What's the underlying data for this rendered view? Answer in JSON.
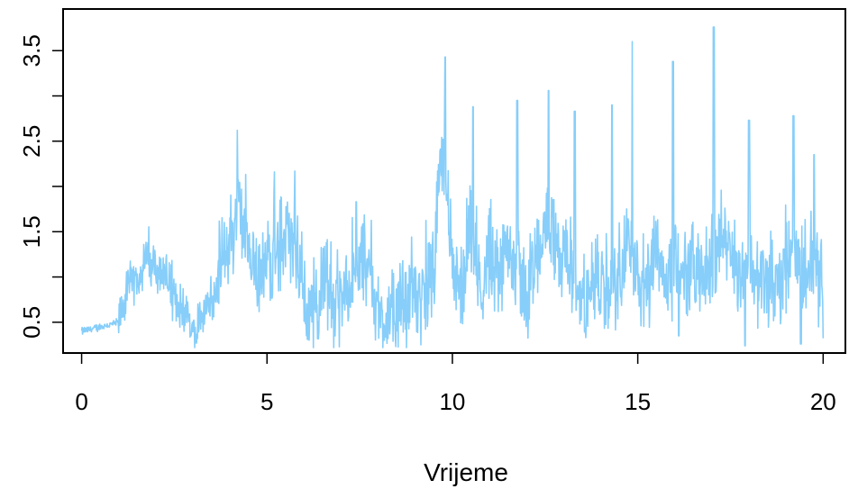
{
  "chart_data": {
    "type": "line",
    "title": "",
    "xlabel": "Vrijeme",
    "ylabel": "",
    "xlim": [
      -0.5,
      20.6
    ],
    "ylim": [
      0.16,
      3.96
    ],
    "x_ticks": [
      0,
      5,
      10,
      15,
      20
    ],
    "y_ticks": [
      0.5,
      1.5,
      2.5,
      3.5
    ],
    "grid": false,
    "line_color": "#87CEFA",
    "series": [
      {
        "x": [
          0.0,
          0.25,
          0.5,
          0.75,
          1.0,
          1.25,
          1.5,
          1.75,
          2.0,
          2.25,
          2.5,
          2.75,
          3.0,
          3.25,
          3.5,
          3.75,
          4.0,
          4.25,
          4.5,
          4.75,
          5.0,
          5.25,
          5.5,
          5.75,
          6.0,
          6.25,
          6.5,
          6.75,
          7.0,
          7.25,
          7.5,
          7.75,
          8.0,
          8.25,
          8.5,
          8.75,
          9.0,
          9.25,
          9.5,
          9.75,
          10.0,
          10.25,
          10.5,
          10.75,
          11.0,
          11.25,
          11.5,
          11.75,
          12.0,
          12.25,
          12.5,
          12.75,
          13.0,
          13.25,
          13.5,
          13.75,
          14.0,
          14.25,
          14.5,
          14.75,
          15.0,
          15.25,
          15.5,
          15.75,
          16.0,
          16.25,
          16.5,
          16.75,
          17.0,
          17.25,
          17.5,
          17.75,
          18.0,
          18.25,
          18.5,
          18.75,
          19.0,
          19.25,
          19.5,
          19.75,
          20.0
        ],
        "y": [
          0.4,
          0.42,
          0.45,
          0.47,
          0.5,
          0.85,
          1.0,
          1.2,
          1.1,
          1.05,
          0.75,
          0.6,
          0.45,
          0.6,
          0.7,
          1.1,
          1.4,
          1.8,
          1.2,
          0.85,
          1.2,
          1.3,
          1.45,
          1.35,
          0.75,
          0.65,
          0.9,
          0.8,
          0.6,
          0.85,
          1.1,
          1.2,
          0.6,
          0.55,
          0.6,
          0.7,
          0.75,
          0.8,
          1.2,
          2.5,
          0.9,
          0.95,
          1.4,
          0.85,
          1.25,
          0.9,
          1.5,
          1.1,
          0.8,
          1.2,
          1.6,
          1.4,
          1.3,
          0.85,
          0.75,
          0.8,
          0.9,
          0.75,
          1.0,
          1.5,
          1.0,
          0.9,
          1.5,
          0.9,
          1.1,
          0.95,
          1.2,
          1.0,
          1.1,
          1.45,
          1.3,
          1.0,
          1.25,
          0.95,
          1.0,
          0.9,
          1.1,
          1.35,
          0.85,
          1.2,
          0.7
        ],
        "peaks": [
          [
            4.2,
            2.62
          ],
          [
            5.2,
            2.16
          ],
          [
            5.75,
            2.17
          ],
          [
            7.4,
            1.83
          ],
          [
            9.8,
            3.43
          ],
          [
            10.55,
            2.88
          ],
          [
            11.75,
            2.95
          ],
          [
            12.6,
            3.06
          ],
          [
            13.3,
            2.83
          ],
          [
            14.3,
            2.9
          ],
          [
            14.85,
            3.6
          ],
          [
            15.95,
            3.38
          ],
          [
            17.05,
            3.76
          ],
          [
            18.0,
            2.73
          ],
          [
            19.2,
            2.78
          ],
          [
            19.75,
            2.35
          ]
        ],
        "troughs": [
          [
            3.1,
            0.27
          ],
          [
            6.1,
            0.31
          ],
          [
            8.4,
            0.29
          ],
          [
            13.6,
            0.33
          ],
          [
            16.1,
            0.35
          ],
          [
            17.9,
            0.24
          ],
          [
            19.4,
            0.26
          ]
        ]
      }
    ]
  }
}
